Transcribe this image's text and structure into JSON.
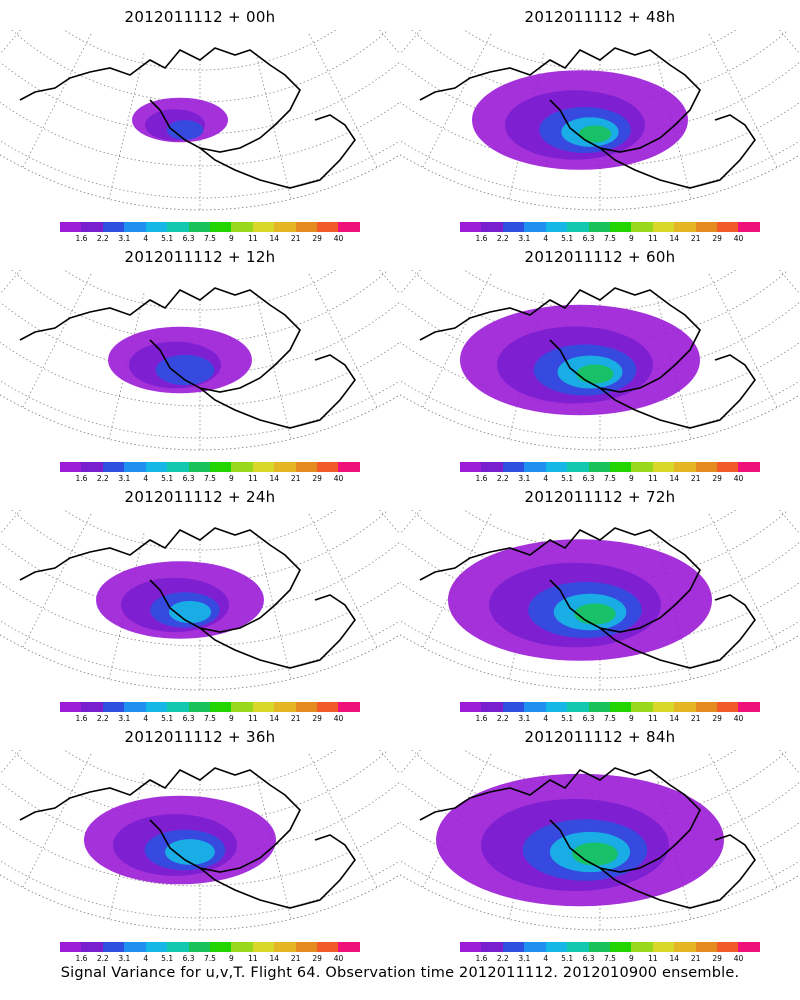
{
  "panels": [
    {
      "title": "2012011112 + 00h",
      "spread": 0.15
    },
    {
      "title": "2012011112 + 48h",
      "spread": 0.65
    },
    {
      "title": "2012011112 + 12h",
      "spread": 0.35
    },
    {
      "title": "2012011112 + 60h",
      "spread": 0.75
    },
    {
      "title": "2012011112 + 24h",
      "spread": 0.45
    },
    {
      "title": "2012011112 + 72h",
      "spread": 0.85
    },
    {
      "title": "2012011112 + 36h",
      "spread": 0.55
    },
    {
      "title": "2012011112 + 84h",
      "spread": 0.95
    }
  ],
  "colorbar": {
    "colors": [
      "#9b1bd6",
      "#7a1fd0",
      "#2f4fe0",
      "#1f8ff0",
      "#16b7e6",
      "#12c9b0",
      "#18c25a",
      "#22d400",
      "#9ad81e",
      "#d8d82a",
      "#e4b624",
      "#e48a1e",
      "#f25a2a",
      "#f0107a"
    ],
    "labels": [
      "1.6",
      "2.2",
      "3.1",
      "4",
      "5.1",
      "6.3",
      "7.5",
      "9",
      "11",
      "14",
      "21",
      "29",
      "40"
    ]
  },
  "footer": "Signal Variance for u,v,T. Flight 64. Observation time 2012011112. 2012010900 ensemble."
}
